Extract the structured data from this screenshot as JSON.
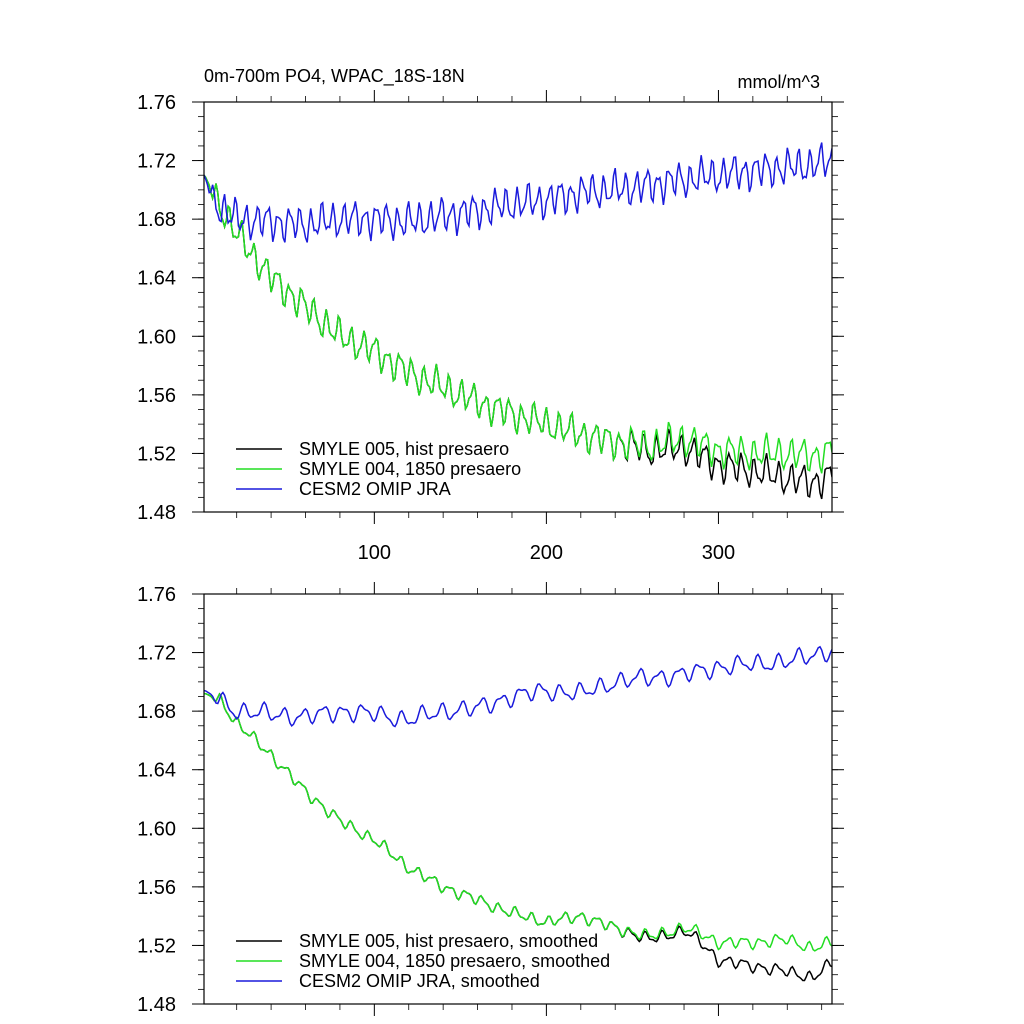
{
  "chart_data": [
    {
      "type": "line",
      "title": "0m-700m PO4, WPAC_18S-18N",
      "units": "mmol/m^3",
      "xlim": [
        1,
        366
      ],
      "ylim": [
        1.48,
        1.76
      ],
      "yticks": [
        1.48,
        1.52,
        1.56,
        1.6,
        1.64,
        1.68,
        1.72,
        1.76
      ],
      "ytick_labels": [
        "1.48",
        "1.52",
        "1.56",
        "1.60",
        "1.64",
        "1.68",
        "1.72",
        "1.76"
      ],
      "xticks": [
        100,
        200,
        300
      ],
      "xtick_labels": [
        "100",
        "200",
        "300"
      ],
      "legend_position": "bottom-left",
      "series": [
        {
          "name": "SMYLE 005, hist presaero",
          "color": "#000000",
          "anchors": [
            [
              1,
              1.71
            ],
            [
              10,
              1.69
            ],
            [
              20,
              1.67
            ],
            [
              40,
              1.64
            ],
            [
              60,
              1.62
            ],
            [
              80,
              1.6
            ],
            [
              100,
              1.59
            ],
            [
              120,
              1.575
            ],
            [
              140,
              1.565
            ],
            [
              160,
              1.555
            ],
            [
              180,
              1.547
            ],
            [
              200,
              1.54
            ],
            [
              220,
              1.533
            ],
            [
              240,
              1.528
            ],
            [
              260,
              1.522
            ],
            [
              280,
              1.524
            ],
            [
              300,
              1.512
            ],
            [
              320,
              1.508
            ],
            [
              340,
              1.503
            ],
            [
              355,
              1.5
            ],
            [
              366,
              1.505
            ]
          ],
          "amplitude": 0.011,
          "period": 7.1,
          "phase": 0.4
        },
        {
          "name": "SMYLE 004, 1850 presaero",
          "color": "#22dd22",
          "anchors": [
            [
              1,
              1.71
            ],
            [
              10,
              1.69
            ],
            [
              20,
              1.67
            ],
            [
              40,
              1.64
            ],
            [
              60,
              1.62
            ],
            [
              80,
              1.6
            ],
            [
              100,
              1.59
            ],
            [
              120,
              1.575
            ],
            [
              140,
              1.565
            ],
            [
              160,
              1.555
            ],
            [
              180,
              1.547
            ],
            [
              200,
              1.54
            ],
            [
              220,
              1.533
            ],
            [
              240,
              1.528
            ],
            [
              260,
              1.525
            ],
            [
              280,
              1.53
            ],
            [
              300,
              1.522
            ],
            [
              320,
              1.52
            ],
            [
              340,
              1.52
            ],
            [
              355,
              1.518
            ],
            [
              366,
              1.522
            ]
          ],
          "amplitude": 0.011,
          "period": 7.1,
          "phase": 0.4
        },
        {
          "name": "CESM2 OMIP JRA",
          "color": "#1a1adc",
          "anchors": [
            [
              1,
              1.71
            ],
            [
              8,
              1.69
            ],
            [
              20,
              1.68
            ],
            [
              40,
              1.678
            ],
            [
              60,
              1.676
            ],
            [
              80,
              1.68
            ],
            [
              100,
              1.68
            ],
            [
              120,
              1.678
            ],
            [
              140,
              1.682
            ],
            [
              160,
              1.686
            ],
            [
              180,
              1.69
            ],
            [
              200,
              1.693
            ],
            [
              220,
              1.698
            ],
            [
              240,
              1.7
            ],
            [
              260,
              1.703
            ],
            [
              280,
              1.707
            ],
            [
              300,
              1.71
            ],
            [
              320,
              1.713
            ],
            [
              340,
              1.715
            ],
            [
              355,
              1.717
            ],
            [
              366,
              1.72
            ]
          ],
          "amplitude": 0.012,
          "period": 6.3,
          "phase": 1.3
        }
      ]
    },
    {
      "type": "line",
      "title": "",
      "units": "",
      "xlim": [
        1,
        366
      ],
      "ylim": [
        1.48,
        1.76
      ],
      "yticks": [
        1.48,
        1.52,
        1.56,
        1.6,
        1.64,
        1.68,
        1.72,
        1.76
      ],
      "ytick_labels": [
        "1.48",
        "1.52",
        "1.56",
        "1.60",
        "1.64",
        "1.68",
        "1.72",
        "1.76"
      ],
      "xticks": [
        100,
        200,
        300
      ],
      "xtick_labels": [],
      "legend_position": "bottom-left",
      "series": [
        {
          "name": "SMYLE 005, hist presaero, smoothed",
          "color": "#000000",
          "anchors": [
            [
              1,
              1.692
            ],
            [
              10,
              1.688
            ],
            [
              20,
              1.672
            ],
            [
              40,
              1.65
            ],
            [
              60,
              1.625
            ],
            [
              80,
              1.605
            ],
            [
              100,
              1.592
            ],
            [
              120,
              1.573
            ],
            [
              140,
              1.56
            ],
            [
              160,
              1.551
            ],
            [
              180,
              1.542
            ],
            [
              200,
              1.536
            ],
            [
              220,
              1.54
            ],
            [
              240,
              1.532
            ],
            [
              260,
              1.524
            ],
            [
              280,
              1.53
            ],
            [
              290,
              1.522
            ],
            [
              300,
              1.51
            ],
            [
              320,
              1.506
            ],
            [
              340,
              1.502
            ],
            [
              355,
              1.498
            ],
            [
              366,
              1.508
            ]
          ],
          "amplitude": 0.004,
          "period": 9.5,
          "phase": 0.6
        },
        {
          "name": "SMYLE 004, 1850 presaero, smoothed",
          "color": "#22dd22",
          "anchors": [
            [
              1,
              1.692
            ],
            [
              10,
              1.688
            ],
            [
              20,
              1.672
            ],
            [
              40,
              1.65
            ],
            [
              60,
              1.625
            ],
            [
              80,
              1.605
            ],
            [
              100,
              1.592
            ],
            [
              120,
              1.573
            ],
            [
              140,
              1.56
            ],
            [
              160,
              1.551
            ],
            [
              180,
              1.542
            ],
            [
              200,
              1.536
            ],
            [
              220,
              1.54
            ],
            [
              240,
              1.532
            ],
            [
              260,
              1.526
            ],
            [
              280,
              1.532
            ],
            [
              290,
              1.528
            ],
            [
              300,
              1.522
            ],
            [
              320,
              1.522
            ],
            [
              340,
              1.524
            ],
            [
              355,
              1.518
            ],
            [
              366,
              1.522
            ]
          ],
          "amplitude": 0.004,
          "period": 9.5,
          "phase": 0.6
        },
        {
          "name": "CESM2 OMIP JRA, smoothed",
          "color": "#1a1adc",
          "anchors": [
            [
              1,
              1.694
            ],
            [
              10,
              1.688
            ],
            [
              20,
              1.68
            ],
            [
              40,
              1.678
            ],
            [
              60,
              1.676
            ],
            [
              80,
              1.68
            ],
            [
              100,
              1.678
            ],
            [
              120,
              1.674
            ],
            [
              140,
              1.68
            ],
            [
              160,
              1.682
            ],
            [
              180,
              1.69
            ],
            [
              200,
              1.694
            ],
            [
              220,
              1.692
            ],
            [
              240,
              1.7
            ],
            [
              260,
              1.703
            ],
            [
              280,
              1.705
            ],
            [
              300,
              1.71
            ],
            [
              320,
              1.712
            ],
            [
              340,
              1.714
            ],
            [
              355,
              1.718
            ],
            [
              366,
              1.722
            ]
          ],
          "amplitude": 0.006,
          "period": 11.5,
          "phase": 0.9
        }
      ]
    }
  ]
}
